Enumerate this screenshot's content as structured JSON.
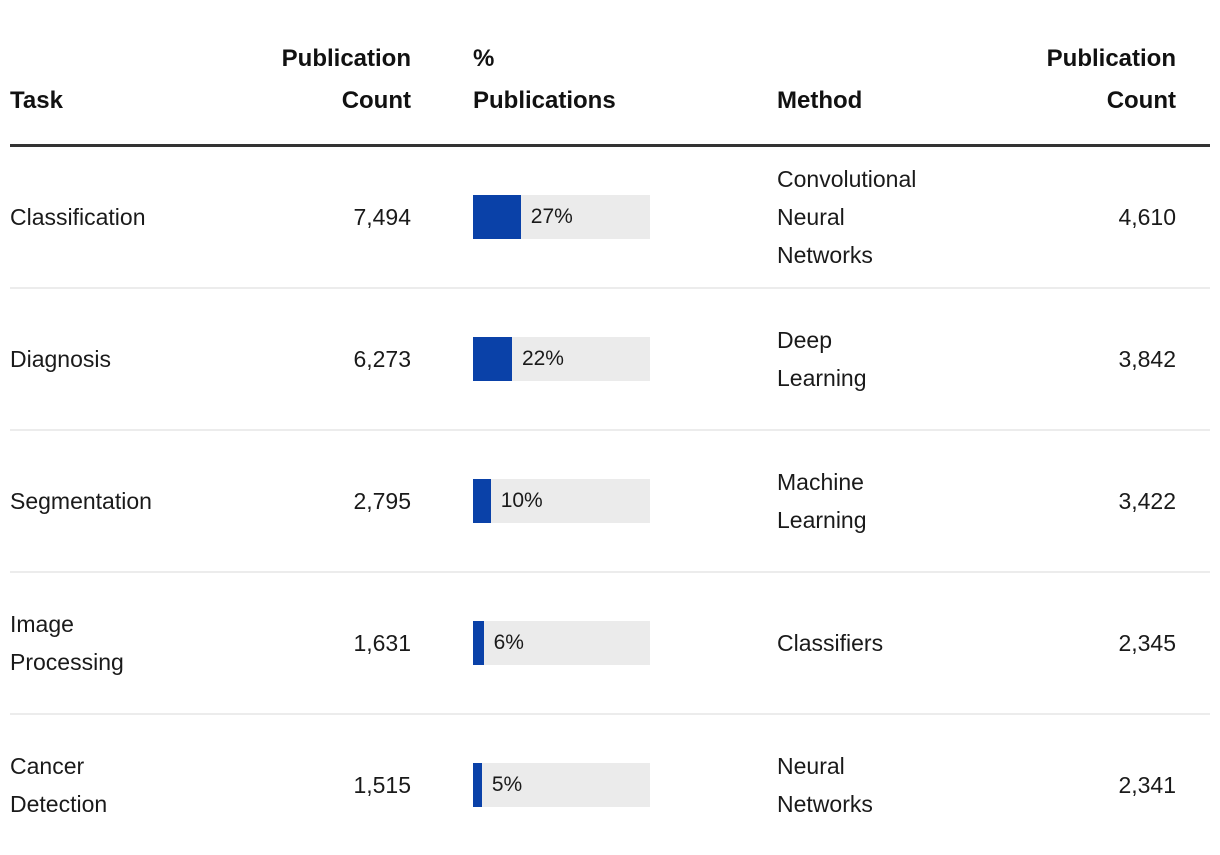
{
  "headers": {
    "task": "Task",
    "publication_count_left": "Publication\nCount",
    "percent_publications": "%\nPublications",
    "method": "Method",
    "publication_count_right": "Publication\nCount"
  },
  "colors": {
    "accent_blue": "#0a41a8",
    "bar_track": "#ebebeb",
    "header_rule": "#333333",
    "row_divider": "#ececec",
    "text": "#1a1a1a"
  },
  "chart_data": {
    "type": "table",
    "layout": "two side-by-side tables; left table has inline horizontal bar chart for % Publications",
    "bar_axis_range": [
      0,
      100
    ],
    "left_table": {
      "columns": [
        "Task",
        "Publication Count",
        "% Publications"
      ],
      "rows": [
        {
          "task": "Classification",
          "count": "7,494",
          "pct": 27,
          "pct_label": "27%"
        },
        {
          "task": "Diagnosis",
          "count": "6,273",
          "pct": 22,
          "pct_label": "22%"
        },
        {
          "task": "Segmentation",
          "count": "2,795",
          "pct": 10,
          "pct_label": "10%"
        },
        {
          "task": "Image\nProcessing",
          "count": "1,631",
          "pct": 6,
          "pct_label": "6%"
        },
        {
          "task": "Cancer\nDetection",
          "count": "1,515",
          "pct": 5,
          "pct_label": "5%"
        }
      ]
    },
    "right_table": {
      "columns": [
        "Method",
        "Publication Count"
      ],
      "rows": [
        {
          "method": "Convolutional\nNeural\nNetworks",
          "count": "4,610"
        },
        {
          "method": "Deep\nLearning",
          "count": "3,842"
        },
        {
          "method": "Machine\nLearning",
          "count": "3,422"
        },
        {
          "method": "Classifiers",
          "count": "2,345"
        },
        {
          "method": "Neural\nNetworks",
          "count": "2,341"
        }
      ]
    }
  }
}
